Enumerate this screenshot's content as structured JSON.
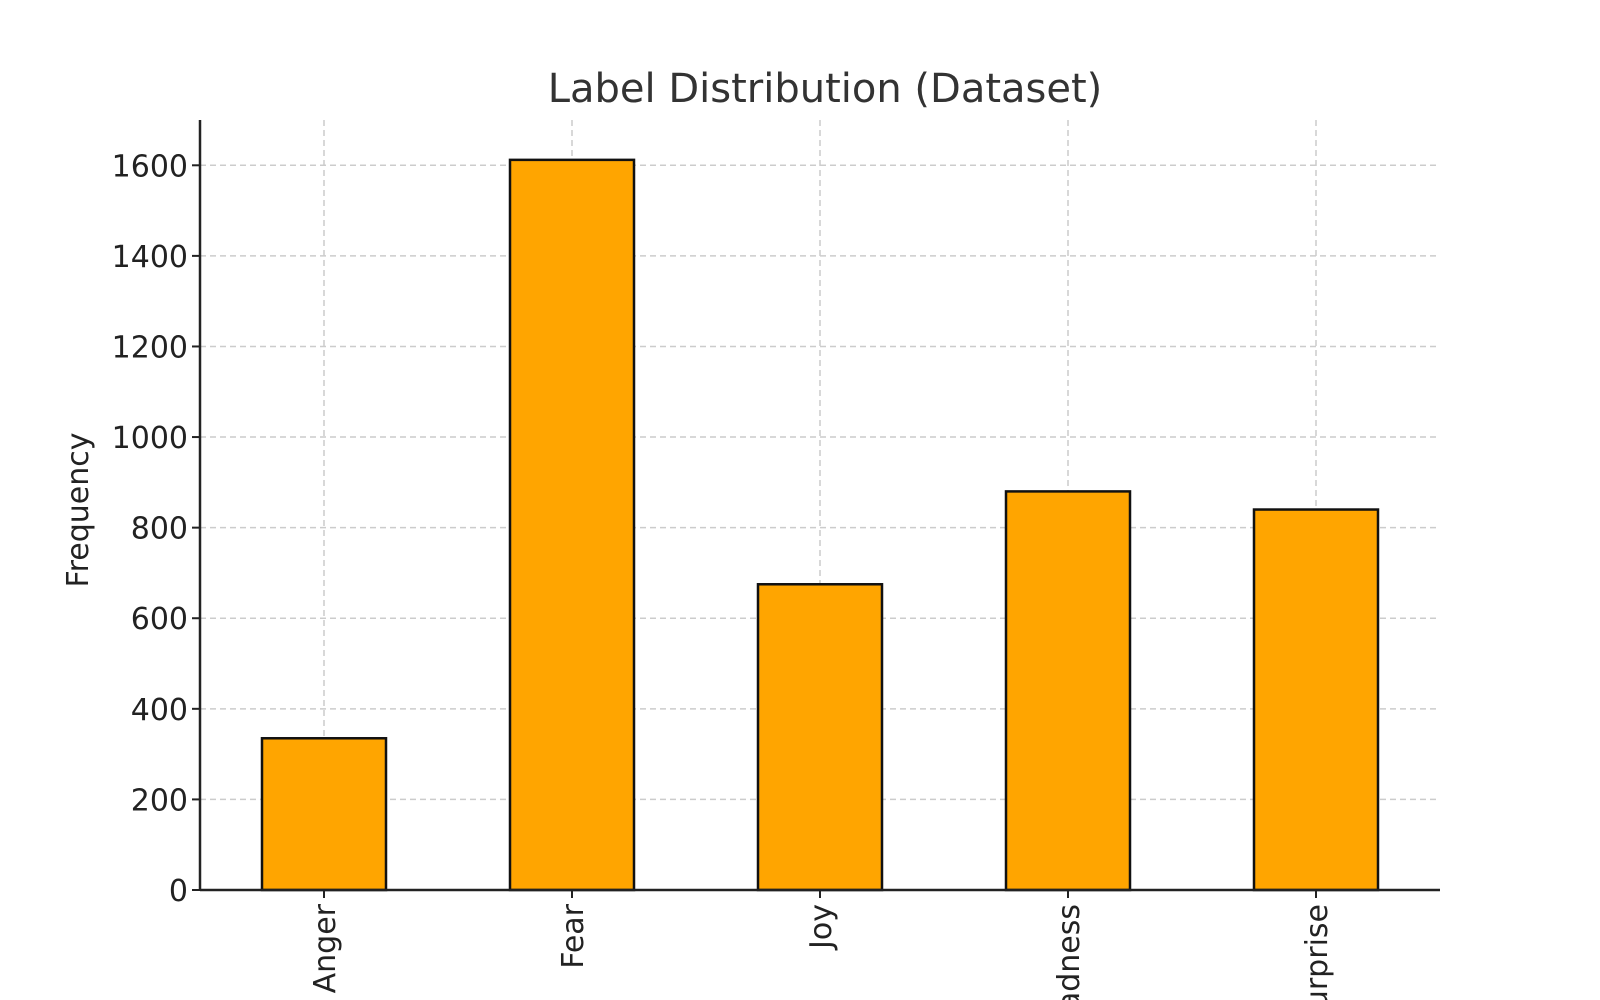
{
  "chart_data": {
    "type": "bar",
    "title": "Label Distribution (Dataset)",
    "xlabel": "",
    "ylabel": "Frequency",
    "categories": [
      "Anger",
      "Fear",
      "Joy",
      "Sadness",
      "Surprise"
    ],
    "values": [
      335,
      1612,
      675,
      880,
      840
    ],
    "ylim": [
      0,
      1700
    ],
    "yticks": [
      0,
      200,
      400,
      600,
      800,
      1000,
      1200,
      1400,
      1600
    ],
    "grid": true,
    "bar_color": "#FFA500",
    "bar_edge_color": "#111111"
  }
}
